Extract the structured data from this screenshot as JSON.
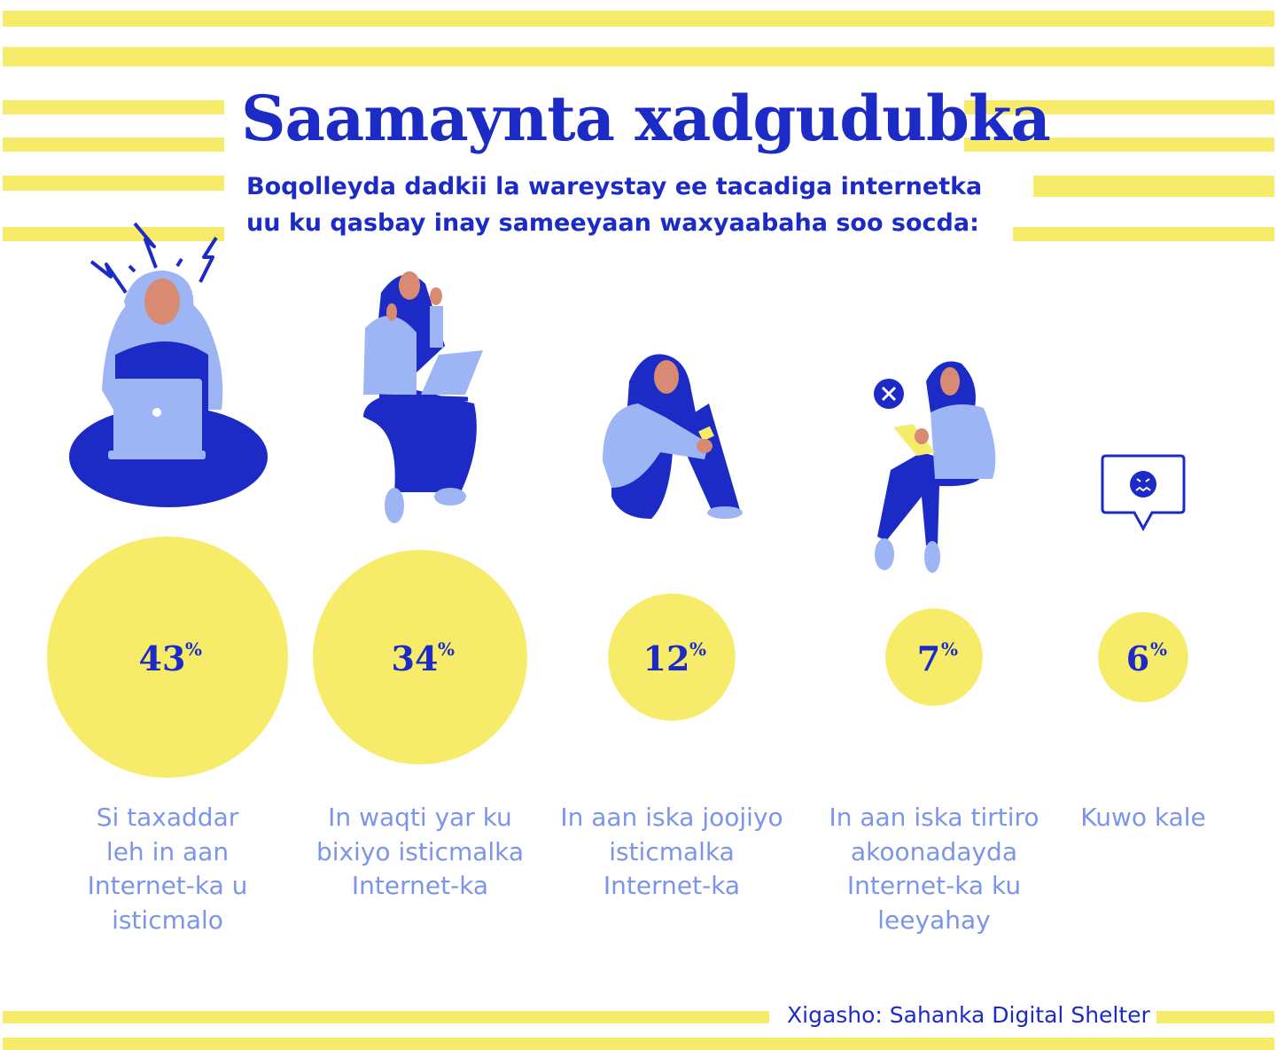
{
  "title": "Saamaynta xadgudubka",
  "subtitle_lines": [
    "Boqolleyda dadkii la wareystay ee tacadiga internetka",
    "uu ku qasbay inay sameeyaan waxyaabaha soo socda:"
  ],
  "source": "Xigasho: Sahanka Digital Shelter",
  "colors": {
    "accent_yellow": "#f7ec6a",
    "dark_blue": "#1d2bc6",
    "light_blue": "#9db5f5",
    "label_blue": "#7b95ea",
    "skin": "#d98a72"
  },
  "chart_data": {
    "type": "bubble",
    "unit": "%",
    "categories": [
      "Si taxaddar leh in aan Internet-ka u isticmalo",
      "In waqti yar ku bixiyo isticmalka Internet-ka",
      "In aan iska joojiyo isticmalka Internet-ka",
      "In aan iska tirtiro akoonadayda Internet-ka ku leeyahay",
      "Kuwo kale"
    ],
    "values": [
      43,
      34,
      12,
      7,
      6
    ],
    "value_labels": [
      "43",
      "34",
      "12",
      "7",
      "6"
    ],
    "label_lines": [
      [
        "Si taxaddar",
        "leh in aan",
        "Internet-ka u",
        "isticmalo"
      ],
      [
        "In waqti yar ku",
        "bixiyo isticmalka",
        "Internet-ka"
      ],
      [
        "In aan iska joojiyo",
        "isticmalka",
        "Internet-ka"
      ],
      [
        "In aan iska tirtiro",
        "akoonadayda",
        "Internet-ka ku",
        "leeyahay"
      ],
      [
        "Kuwo kale"
      ]
    ],
    "icons": [
      "frustrated-woman-laptop-icon",
      "woman-laptop-waving-icon",
      "woman-sitting-hugging-knees-icon",
      "woman-phone-delete-icon",
      "sad-speech-bubble-icon"
    ]
  }
}
